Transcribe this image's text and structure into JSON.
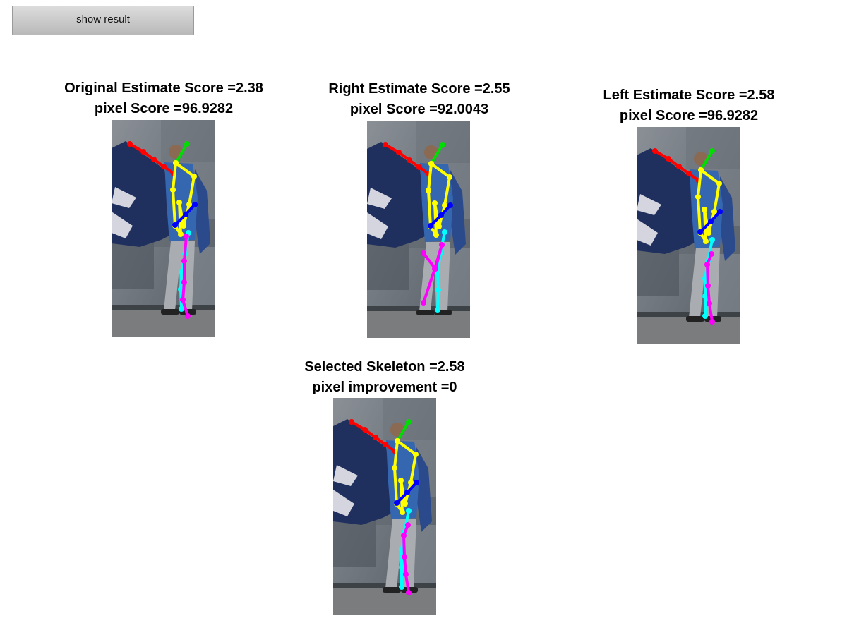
{
  "button": {
    "label": "show result"
  },
  "panels": [
    {
      "name": "original-estimate",
      "line1": "Original Estimate Score =2.38",
      "line2": "pixel Score =96.9282",
      "variant": "original"
    },
    {
      "name": "right-estimate",
      "line1": "Right Estimate Score =2.55",
      "line2": "pixel Score =92.0043",
      "variant": "right"
    },
    {
      "name": "left-estimate",
      "line1": "Left Estimate Score =2.58",
      "line2": "pixel Score =96.9282",
      "variant": "left"
    },
    {
      "name": "selected-skeleton",
      "line1": "Selected Skeleton =2.58",
      "line2": "pixel improvement =0",
      "variant": "left"
    }
  ],
  "limb_colors": {
    "arm_right": "#ff0000",
    "head": "#00dd00",
    "torso": "#ffff00",
    "arm_left": "#0000ff",
    "leg_a": "#00ffff",
    "leg_b": "#ff00ff"
  }
}
